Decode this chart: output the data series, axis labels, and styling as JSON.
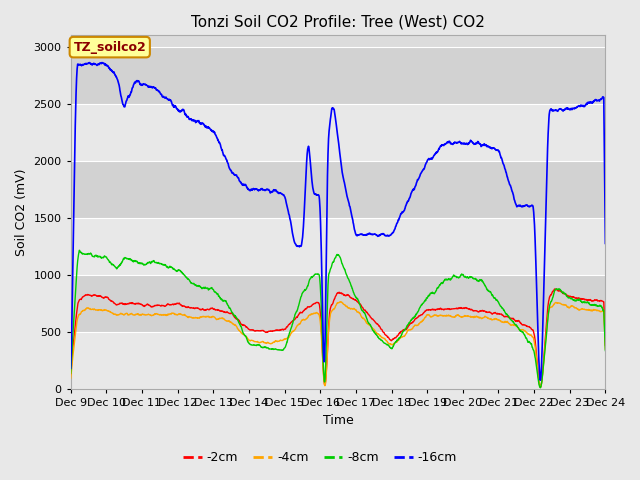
{
  "title": "Tonzi Soil CO2 Profile: Tree (West) CO2",
  "ylabel": "Soil CO2 (mV)",
  "xlabel": "Time",
  "ylim": [
    0,
    3100
  ],
  "yticks": [
    0,
    500,
    1000,
    1500,
    2000,
    2500,
    3000
  ],
  "xtick_labels": [
    "Dec 9",
    "Dec 10",
    "Dec 11",
    "Dec 12",
    "Dec 13",
    "Dec 14",
    "Dec 15",
    "Dec 16",
    "Dec 17",
    "Dec 18",
    "Dec 19",
    "Dec 20",
    "Dec 21",
    "Dec 22",
    "Dec 23",
    "Dec 24"
  ],
  "legend_label": "TZ_soilco2",
  "series_labels": [
    "-2cm",
    "-4cm",
    "-8cm",
    "-16cm"
  ],
  "colors": [
    "#ff0000",
    "#ffa500",
    "#00cc00",
    "#0000ff"
  ],
  "fig_bg": "#e8e8e8",
  "plot_bg": "#dcdcdc",
  "band_light": "#e8e8e8",
  "band_dark": "#d2d2d2",
  "legend_box_color": "#ffff99",
  "legend_box_edge": "#cc8800",
  "title_fontsize": 11,
  "axis_fontsize": 9,
  "tick_fontsize": 8
}
